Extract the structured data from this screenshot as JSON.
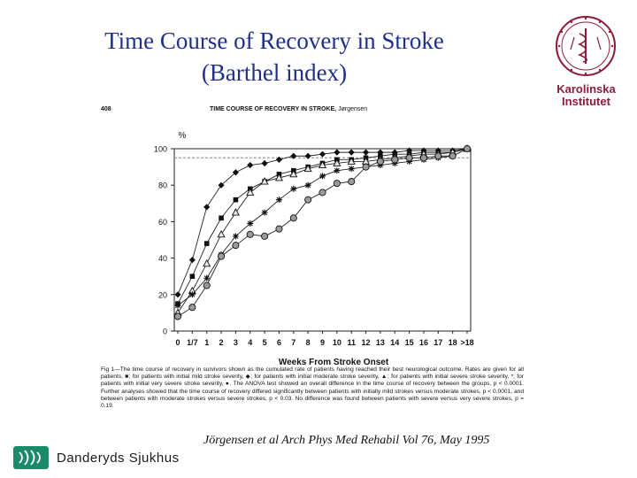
{
  "slide": {
    "title_line1": "Time Course of Recovery in Stroke",
    "title_line2": "(Barthel index)",
    "citation": "Jörgensen et al Arch Phys Med Rehabil Vol 76, May 1995"
  },
  "logos": {
    "karolinska_line1": "Karolinska",
    "karolinska_line2": "Institutet",
    "danderyd": "Danderyds Sjukhus"
  },
  "figure_header": {
    "page_number": "408",
    "running_title": "TIME COURSE OF RECOVERY IN STROKE,",
    "author": "Jørgensen"
  },
  "caption": "Fig 1—The time course of recovery in survivors shown as the cumulated rate of patients having reached their best neurological outcome. Rates are given for all patients, ■; for patients with initial mild stroke severity, ◆; for patients with initial moderate stroke severity, ▲; for patients with initial severe stroke severity, *; for patients with initial very severe stroke severity, ●. The ANOVA test showed an overall difference in the time course of recovery between the groups, p < 0.0001. Further analyses showed that the time course of recovery differed significantly between patients with initially mild strokes versus moderate strokes, p < 0.0001, and between patients with moderate strokes versus severe strokes, p < 0.03. No difference was found between patients with severe versus very severe strokes, p = 0.19.",
  "chart_data": {
    "type": "line",
    "title": "",
    "xlabel": "Weeks From Stroke Onset",
    "ylabel": "%",
    "ylim": [
      0,
      100
    ],
    "yticks": [
      0,
      20,
      40,
      60,
      80,
      100
    ],
    "x": [
      "0",
      "1/7",
      "1",
      "2",
      "3",
      "4",
      "5",
      "6",
      "7",
      "8",
      "9",
      "10",
      "11",
      "12",
      "13",
      "14",
      "15",
      "16",
      "17",
      "18",
      ">18"
    ],
    "grid": false,
    "reference_line": 95,
    "series": [
      {
        "marker": "diamond",
        "values": [
          20,
          39,
          68,
          80,
          87,
          91,
          92,
          94,
          96,
          96,
          97,
          98,
          98,
          98,
          98,
          98,
          99,
          99,
          99,
          99,
          100
        ]
      },
      {
        "marker": "square",
        "values": [
          15,
          30,
          48,
          62,
          72,
          78,
          82,
          86,
          88,
          90,
          92,
          94,
          94,
          95,
          96,
          97,
          97,
          98,
          98,
          98,
          100
        ]
      },
      {
        "marker": "triangle",
        "values": [
          10,
          22,
          37,
          53,
          65,
          76,
          82,
          84,
          86,
          89,
          91,
          92,
          93,
          93,
          94,
          95,
          96,
          97,
          97,
          98,
          100
        ]
      },
      {
        "marker": "star",
        "values": [
          14,
          20,
          29,
          42,
          52,
          59,
          65,
          72,
          78,
          80,
          85,
          88,
          89,
          90,
          91,
          92,
          93,
          94,
          95,
          96,
          100
        ]
      },
      {
        "marker": "circle",
        "values": [
          8,
          13,
          25,
          41,
          47,
          53,
          52,
          56,
          62,
          72,
          76,
          81,
          82,
          90,
          93,
          94,
          95,
          95,
          96,
          96,
          100
        ]
      }
    ]
  },
  "colors": {
    "title": "#1f2f8a",
    "karolinska": "#8b1c3a",
    "danderyd_icon": "#1b8a6b",
    "reference_line": "#888888"
  }
}
